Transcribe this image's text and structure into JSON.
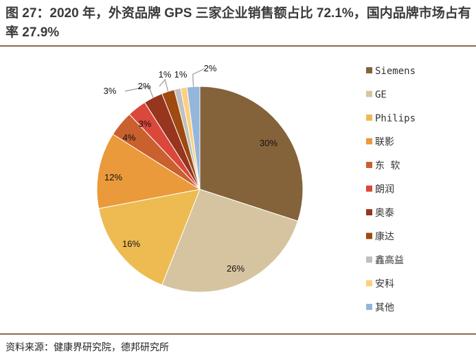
{
  "title": "图 27：2020 年，外资品牌 GPS 三家企业销售额占比 72.1%，国内品牌市场占有率 27.9%",
  "source": "资料来源：健康界研究院，德邦研究所",
  "chart_data": {
    "type": "pie",
    "title": "图 27：2020 年，外资品牌 GPS 三家企业销售额占比 72.1%，国内品牌市场占有率 27.9%",
    "unit": "%",
    "legend_position": "right",
    "slices": [
      {
        "name": "Siemens",
        "value": 30,
        "label": "30%",
        "color": "#84623A"
      },
      {
        "name": "GE",
        "value": 26,
        "label": "26%",
        "color": "#D6C4A0"
      },
      {
        "name": "Philips",
        "value": 16,
        "label": "16%",
        "color": "#EDBB52"
      },
      {
        "name": "联影",
        "value": 12,
        "label": "12%",
        "color": "#EA9A3A"
      },
      {
        "name": "东 软",
        "value": 4,
        "label": "4%",
        "color": "#C9602E"
      },
      {
        "name": "朗润",
        "value": 3,
        "label": "3%",
        "color": "#D9483A"
      },
      {
        "name": "奥泰",
        "value": 3,
        "label": "3%",
        "color": "#98351E"
      },
      {
        "name": "康达",
        "value": 2,
        "label": "2%",
        "color": "#9E4A10"
      },
      {
        "name": "鑫高益",
        "value": 1,
        "label": "1%",
        "color": "#C0C0C0"
      },
      {
        "name": "安科",
        "value": 1,
        "label": "1%",
        "color": "#FDD080"
      },
      {
        "name": "其他",
        "value": 2,
        "label": "2%",
        "color": "#94B6DC"
      }
    ]
  }
}
